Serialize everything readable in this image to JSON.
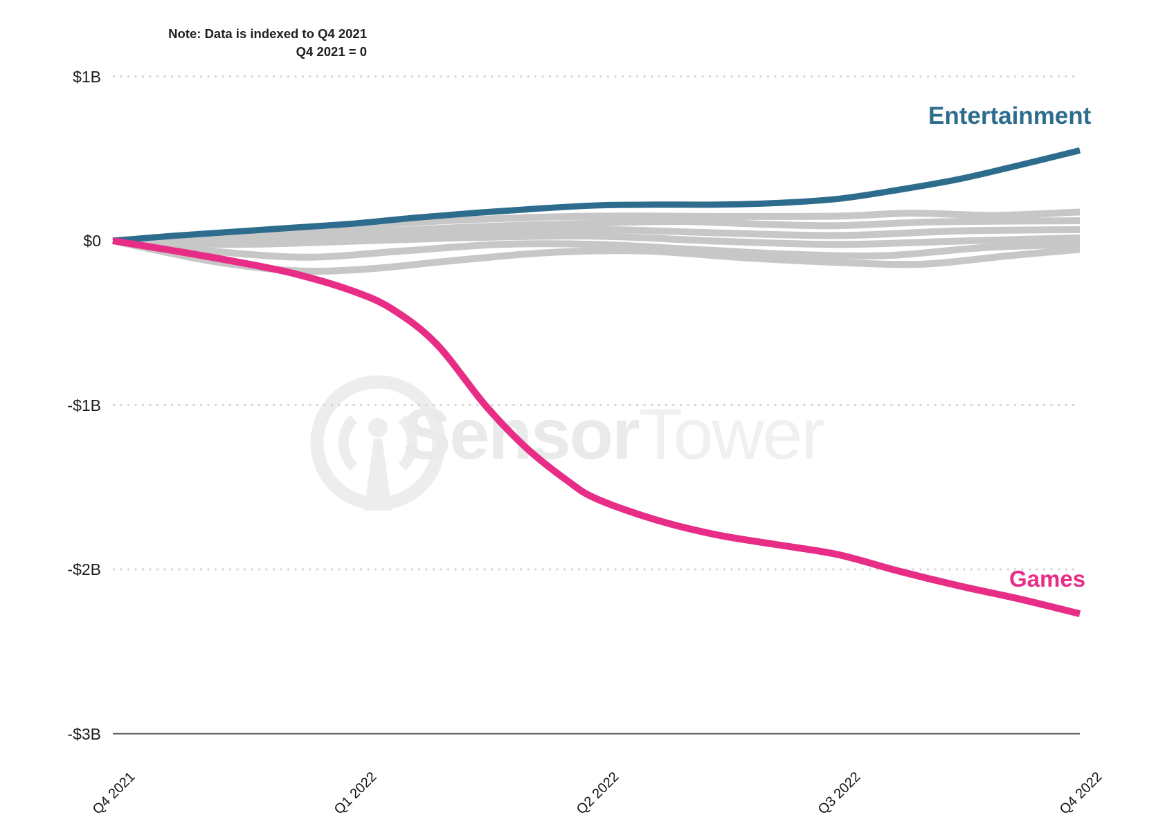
{
  "note": {
    "line1": "Note: Data is indexed to Q4 2021",
    "line2": "Q4 2021 = 0"
  },
  "watermark": {
    "brand_bold": "Sensor",
    "brand_light": "Tower",
    "logo_icon": "sensortower-antenna-circle-icon"
  },
  "colors": {
    "entertainment": "#2d6c8d",
    "games": "#e82d87",
    "background_line": "#c7c7c7",
    "gridline_dots": "#d6d6d6",
    "axis_line": "#4d4d4d",
    "tick_text": "#1a1a1a",
    "watermark": "#ececec"
  },
  "chart_data": {
    "type": "line",
    "title": "",
    "note": "Note: Data is indexed to Q4 2021 / Q4 2021 = 0",
    "units": "USD billions (indexed change vs Q4 2021)",
    "x_categories": [
      "Q4 2021",
      "Q1 2022",
      "Q2 2022",
      "Q3 2022",
      "Q4 2022"
    ],
    "y_ticks": [
      {
        "label": "$1B",
        "value": 1
      },
      {
        "label": "$0",
        "value": 0
      },
      {
        "label": "-$1B",
        "value": -1
      },
      {
        "label": "-$2B",
        "value": -2
      },
      {
        "label": "-$3B",
        "value": -3
      }
    ],
    "ylim": [
      -3,
      1
    ],
    "gridline_values": [
      1,
      -1,
      -2
    ],
    "axis_line_value": -3,
    "legend_position": "inline-end-labels",
    "grid": "dotted-horizontal",
    "series": [
      {
        "name": "Entertainment",
        "color": "#2d6c8d",
        "width": 9,
        "points": [
          [
            0,
            0
          ],
          [
            0.25,
            0.03
          ],
          [
            0.5,
            0.055
          ],
          [
            0.75,
            0.08
          ],
          [
            1,
            0.105
          ],
          [
            1.25,
            0.14
          ],
          [
            1.5,
            0.17
          ],
          [
            1.75,
            0.195
          ],
          [
            2,
            0.215
          ],
          [
            2.25,
            0.22
          ],
          [
            2.5,
            0.22
          ],
          [
            2.75,
            0.23
          ],
          [
            3,
            0.255
          ],
          [
            3.25,
            0.31
          ],
          [
            3.5,
            0.375
          ],
          [
            3.75,
            0.46
          ],
          [
            4,
            0.55
          ]
        ]
      },
      {
        "name": "Games",
        "color": "#e82d87",
        "width": 10,
        "points": [
          [
            0,
            0
          ],
          [
            0.25,
            -0.06
          ],
          [
            0.5,
            -0.125
          ],
          [
            0.75,
            -0.2
          ],
          [
            1,
            -0.31
          ],
          [
            1.16,
            -0.42
          ],
          [
            1.34,
            -0.63
          ],
          [
            1.54,
            -1.0
          ],
          [
            1.71,
            -1.26
          ],
          [
            1.88,
            -1.46
          ],
          [
            2,
            -1.57
          ],
          [
            2.25,
            -1.7
          ],
          [
            2.5,
            -1.79
          ],
          [
            2.75,
            -1.85
          ],
          [
            3,
            -1.91
          ],
          [
            3.25,
            -2.01
          ],
          [
            3.5,
            -2.1
          ],
          [
            3.75,
            -2.18
          ],
          [
            4,
            -2.27
          ]
        ]
      }
    ],
    "background_series": [
      {
        "color": "#c7c7c7",
        "width": 10,
        "points": [
          [
            0,
            0
          ],
          [
            0.5,
            0.045
          ],
          [
            1,
            0.09
          ],
          [
            1.5,
            0.13
          ],
          [
            2,
            0.15
          ],
          [
            2.5,
            0.148
          ],
          [
            3,
            0.15
          ],
          [
            3.3,
            0.168
          ],
          [
            3.65,
            0.155
          ],
          [
            4,
            0.175
          ]
        ]
      },
      {
        "color": "#c7c7c7",
        "width": 10,
        "points": [
          [
            0,
            0
          ],
          [
            0.5,
            0.02
          ],
          [
            1,
            0.05
          ],
          [
            1.5,
            0.085
          ],
          [
            2,
            0.108
          ],
          [
            2.35,
            0.118
          ],
          [
            2.7,
            0.1
          ],
          [
            3,
            0.092
          ],
          [
            3.4,
            0.115
          ],
          [
            4,
            0.122
          ]
        ]
      },
      {
        "color": "#c7c7c7",
        "width": 10,
        "points": [
          [
            0,
            0
          ],
          [
            0.5,
            0.008
          ],
          [
            1,
            0.03
          ],
          [
            1.5,
            0.052
          ],
          [
            2,
            0.068
          ],
          [
            2.5,
            0.048
          ],
          [
            3,
            0.032
          ],
          [
            3.5,
            0.06
          ],
          [
            4,
            0.068
          ]
        ]
      },
      {
        "color": "#c7c7c7",
        "width": 10,
        "points": [
          [
            0,
            0
          ],
          [
            0.5,
            -0.022
          ],
          [
            1,
            -0.002
          ],
          [
            1.5,
            0.02
          ],
          [
            2,
            0.028
          ],
          [
            2.5,
            -0.002
          ],
          [
            3,
            -0.022
          ],
          [
            3.5,
            -0.002
          ],
          [
            4,
            0.018
          ]
        ]
      },
      {
        "color": "#c7c7c7",
        "width": 10,
        "points": [
          [
            0,
            0
          ],
          [
            0.4,
            -0.062
          ],
          [
            0.8,
            -0.1
          ],
          [
            1.2,
            -0.062
          ],
          [
            1.6,
            -0.022
          ],
          [
            2,
            -0.022
          ],
          [
            2.4,
            -0.052
          ],
          [
            2.8,
            -0.082
          ],
          [
            3.2,
            -0.09
          ],
          [
            3.6,
            -0.042
          ],
          [
            4,
            -0.022
          ]
        ]
      },
      {
        "color": "#c7c7c7",
        "width": 10,
        "points": [
          [
            0,
            0
          ],
          [
            0.4,
            -0.122
          ],
          [
            0.75,
            -0.182
          ],
          [
            1.05,
            -0.172
          ],
          [
            1.4,
            -0.122
          ],
          [
            1.8,
            -0.072
          ],
          [
            2.2,
            -0.062
          ],
          [
            2.6,
            -0.102
          ],
          [
            3,
            -0.132
          ],
          [
            3.35,
            -0.142
          ],
          [
            3.7,
            -0.092
          ],
          [
            4,
            -0.052
          ]
        ]
      }
    ]
  }
}
